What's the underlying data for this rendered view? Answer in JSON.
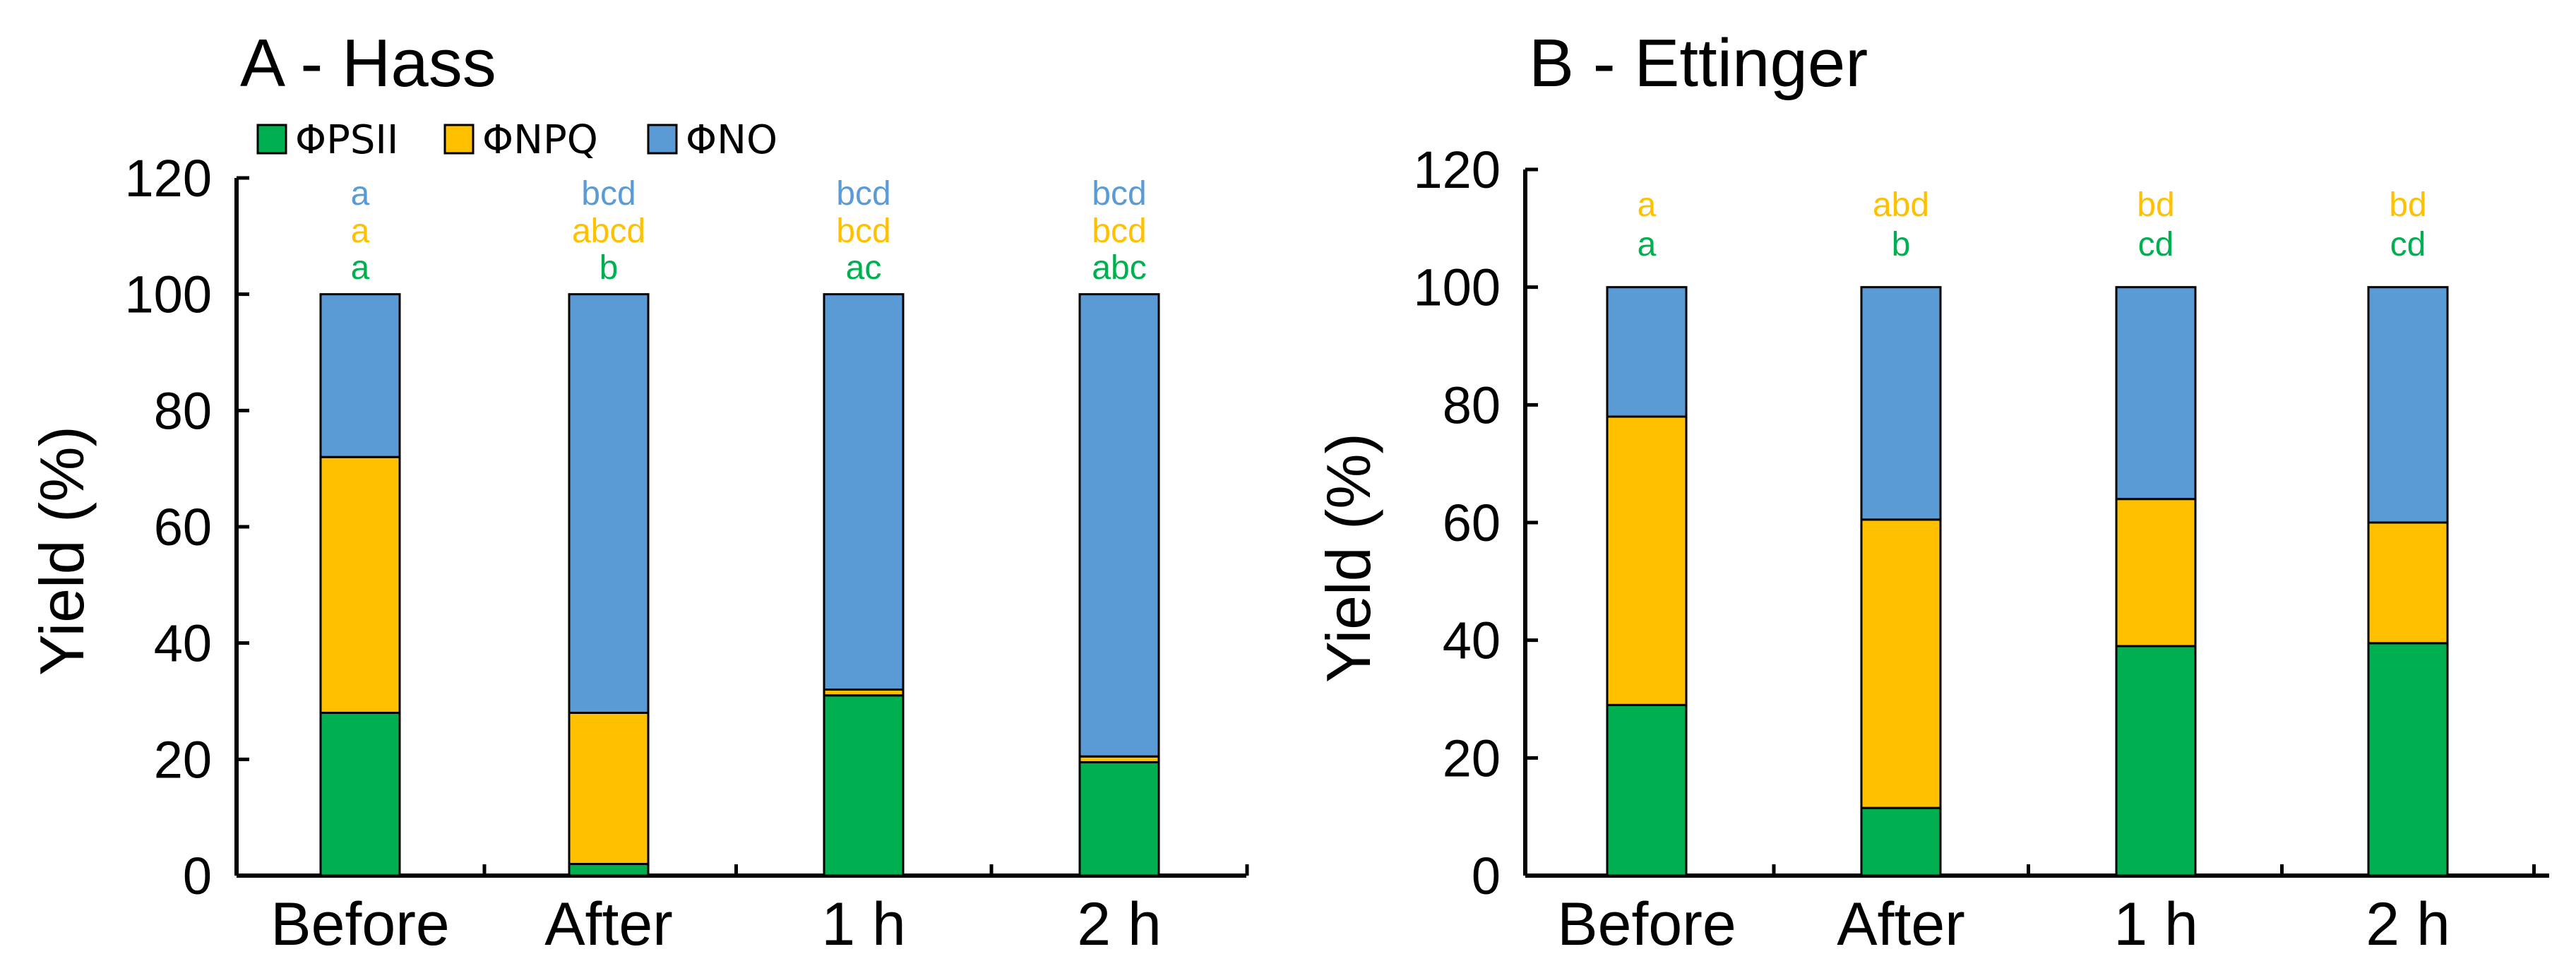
{
  "colors": {
    "PSII": "#00b050",
    "NPQ": "#ffc000",
    "NO": "#5b9bd5",
    "letters_PSII": "#00b050",
    "letters_NPQ": "#ffc000",
    "letters_NO": "#5b9bd5"
  },
  "legend": [
    "ΦPSII",
    "ΦNPQ",
    "ΦNO"
  ],
  "chart_data": [
    {
      "type": "bar",
      "stacked": true,
      "title": "A - Hass",
      "ylabel": "Yield (%)",
      "ylim": [
        0,
        120
      ],
      "yticks": [
        "0",
        "20",
        "40",
        "60",
        "80",
        "100",
        "120"
      ],
      "categories": [
        "Before",
        "After",
        "1 h",
        "2 h"
      ],
      "series": [
        {
          "name": "ΦPSII",
          "values": [
            28,
            2,
            31,
            19.5
          ]
        },
        {
          "name": "ΦNPQ",
          "values": [
            44,
            26,
            1,
            1
          ]
        },
        {
          "name": "ΦNO",
          "values": [
            28,
            72,
            68,
            79.5
          ]
        }
      ],
      "letters": {
        "ΦPSII": [
          "a",
          "b",
          "ac",
          "abc"
        ],
        "ΦNPQ": [
          "a",
          "abcd",
          "bcd",
          "bcd"
        ],
        "ΦNO": [
          "a",
          "bcd",
          "bcd",
          "bcd"
        ]
      }
    },
    {
      "type": "bar",
      "stacked": true,
      "title": "B - Ettinger",
      "ylabel": "Yield (%)",
      "ylim": [
        0,
        120
      ],
      "yticks": [
        "0",
        "20",
        "40",
        "60",
        "80",
        "100",
        "120"
      ],
      "categories": [
        "Before",
        "After",
        "1 h",
        "2 h"
      ],
      "series": [
        {
          "name": "ΦPSII",
          "values": [
            29,
            11.5,
            39,
            39.5
          ]
        },
        {
          "name": "ΦNPQ",
          "values": [
            49,
            49,
            25,
            20.5
          ]
        },
        {
          "name": "ΦNO",
          "values": [
            22,
            39.5,
            36,
            40
          ]
        }
      ],
      "letters": {
        "ΦPSII": [
          "a",
          "b",
          "cd",
          "cd"
        ],
        "ΦNPQ": [
          "a",
          "abd",
          "bd",
          "bd"
        ]
      }
    }
  ]
}
